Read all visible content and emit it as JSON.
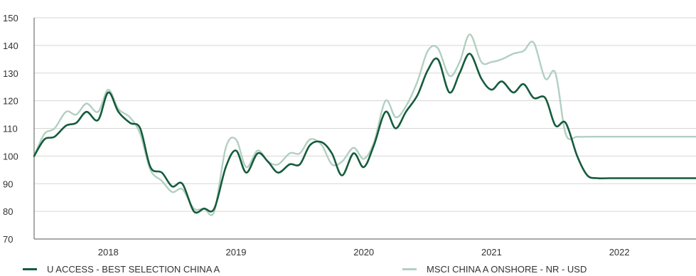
{
  "chart_data": {
    "type": "line",
    "title": "",
    "xlabel": "",
    "ylabel": "",
    "ylim": [
      70,
      150
    ],
    "yticks": [
      70,
      80,
      90,
      100,
      110,
      120,
      130,
      140,
      150
    ],
    "xlim": [
      2017.42,
      2022.6
    ],
    "xticks": [
      {
        "value": 2018.0,
        "label": "2018"
      },
      {
        "value": 2019.0,
        "label": "2019"
      },
      {
        "value": 2020.0,
        "label": "2020"
      },
      {
        "value": 2021.0,
        "label": "2021"
      },
      {
        "value": 2022.0,
        "label": "2022"
      }
    ],
    "grid": "horizontal",
    "legend": "bottom",
    "series": [
      {
        "name": "U ACCESS - BEST SELECTION CHINA A",
        "color": "#145c3c",
        "x": [
          2017.42,
          2017.5,
          2017.58,
          2017.67,
          2017.75,
          2017.83,
          2017.92,
          2018.0,
          2018.08,
          2018.17,
          2018.25,
          2018.33,
          2018.42,
          2018.5,
          2018.58,
          2018.67,
          2018.75,
          2018.83,
          2018.92,
          2019.0,
          2019.08,
          2019.17,
          2019.25,
          2019.33,
          2019.42,
          2019.5,
          2019.58,
          2019.67,
          2019.75,
          2019.83,
          2019.92,
          2020.0,
          2020.08,
          2020.17,
          2020.25,
          2020.33,
          2020.42,
          2020.5,
          2020.58,
          2020.67,
          2020.75,
          2020.83,
          2020.92,
          2021.0,
          2021.08,
          2021.17,
          2021.25,
          2021.33,
          2021.42,
          2021.5,
          2021.58,
          2021.67,
          2021.75,
          2021.83,
          2021.92,
          2022.0,
          2022.08,
          2022.17,
          2022.25,
          2022.33,
          2022.42,
          2022.5,
          2022.6
        ],
        "y": [
          100,
          106,
          107,
          111,
          112,
          116,
          113,
          123,
          116,
          112,
          110,
          96,
          94,
          89,
          90,
          80,
          81,
          81,
          96,
          102,
          94,
          101,
          98,
          94,
          97,
          97,
          104,
          105,
          101,
          93,
          101,
          96,
          104,
          116,
          110,
          116,
          122,
          131,
          135,
          123,
          130,
          137,
          128,
          124,
          127,
          123,
          126,
          121,
          121,
          111,
          112,
          100,
          93,
          92,
          92,
          92,
          92,
          92,
          92,
          92,
          92,
          92,
          92
        ]
      },
      {
        "name": "MSCI CHINA A ONSHORE - NR - USD",
        "color": "#b2cfc2",
        "x": [
          2017.42,
          2017.5,
          2017.58,
          2017.67,
          2017.75,
          2017.83,
          2017.92,
          2018.0,
          2018.08,
          2018.17,
          2018.25,
          2018.33,
          2018.42,
          2018.5,
          2018.58,
          2018.67,
          2018.75,
          2018.83,
          2018.92,
          2019.0,
          2019.08,
          2019.17,
          2019.25,
          2019.33,
          2019.42,
          2019.5,
          2019.58,
          2019.67,
          2019.75,
          2019.83,
          2019.92,
          2020.0,
          2020.08,
          2020.17,
          2020.25,
          2020.33,
          2020.42,
          2020.5,
          2020.58,
          2020.67,
          2020.75,
          2020.83,
          2020.92,
          2021.0,
          2021.08,
          2021.17,
          2021.25,
          2021.33,
          2021.42,
          2021.5,
          2021.58,
          2021.67,
          2021.75,
          2021.83,
          2021.92,
          2022.0,
          2022.08,
          2022.17,
          2022.25,
          2022.33,
          2022.42,
          2022.5,
          2022.6
        ],
        "y": [
          100,
          108,
          110,
          116,
          115,
          119,
          116,
          124,
          117,
          114,
          108,
          95,
          91,
          87,
          88,
          81,
          81,
          80,
          103,
          106,
          96,
          102,
          98,
          97,
          101,
          101,
          106,
          104,
          97,
          98,
          103,
          99,
          105,
          120,
          114,
          118,
          127,
          138,
          139,
          129,
          134,
          144,
          134,
          134,
          135,
          137,
          138,
          141,
          128,
          130,
          108,
          107,
          107,
          107,
          107,
          107,
          107,
          107,
          107,
          107,
          107,
          107,
          107
        ]
      }
    ]
  }
}
